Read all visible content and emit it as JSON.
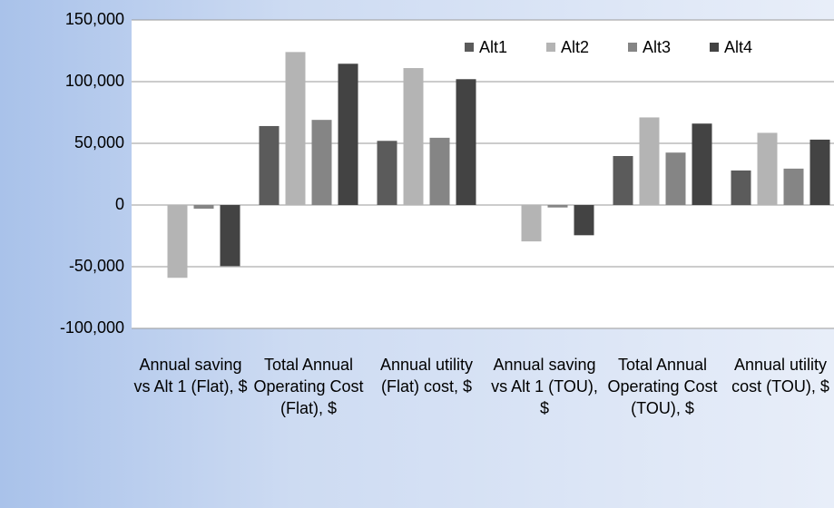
{
  "chart_data": {
    "type": "bar",
    "categories": [
      "Annual saving vs Alt 1 (Flat), $",
      "Total Annual Operating Cost (Flat), $",
      "Annual utility (Flat) cost, $",
      "Annual saving vs Alt 1 (TOU), $",
      "Total Annual Operating Cost (TOU), $",
      "Annual utility cost (TOU), $"
    ],
    "series": [
      {
        "name": "Alt1",
        "color": "#5b5b5b",
        "values": [
          0,
          64000,
          52000,
          0,
          39700,
          28000
        ]
      },
      {
        "name": "Alt2",
        "color": "#b4b4b4",
        "values": [
          -59000,
          124000,
          111000,
          -29500,
          71000,
          58500
        ]
      },
      {
        "name": "Alt3",
        "color": "#858585",
        "values": [
          -3000,
          69000,
          54500,
          -2000,
          42500,
          29500
        ]
      },
      {
        "name": "Alt4",
        "color": "#434343",
        "values": [
          -49500,
          114500,
          102000,
          -24500,
          66000,
          53000
        ]
      }
    ],
    "ylim": [
      -100000,
      150000
    ],
    "yticks": [
      {
        "value": -100000,
        "label": "-100,000"
      },
      {
        "value": -50000,
        "label": "-50,000"
      },
      0,
      {
        "value": 50000,
        "label": "50,000"
      },
      {
        "value": 100000,
        "label": "100,000"
      },
      {
        "value": 150000,
        "label": "150,000"
      }
    ],
    "grid": true,
    "legend": "top-right"
  }
}
